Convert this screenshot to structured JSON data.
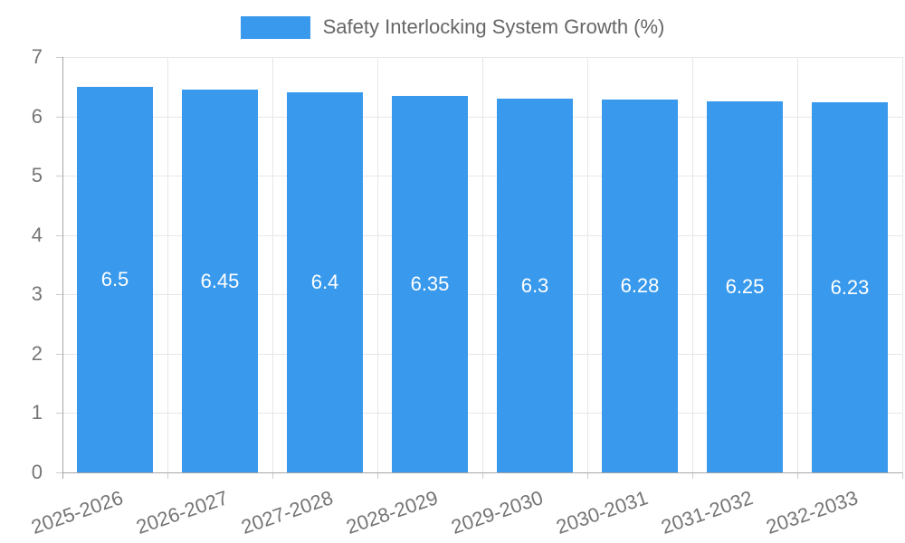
{
  "chart_data": {
    "type": "bar",
    "title": "Safety Interlocking System Growth (%)",
    "legend": {
      "position": "top",
      "label": "Safety Interlocking System Growth (%)"
    },
    "categories": [
      "2025-2026",
      "2026-2027",
      "2027-2028",
      "2028-2029",
      "2029-2030",
      "2030-2031",
      "2031-2032",
      "2032-2033"
    ],
    "values": [
      6.5,
      6.45,
      6.4,
      6.35,
      6.3,
      6.28,
      6.25,
      6.23
    ],
    "value_labels": [
      "6.5",
      "6.45",
      "6.4",
      "6.35",
      "6.3",
      "6.28",
      "6.25",
      "6.23"
    ],
    "xlabel": "",
    "ylabel": "",
    "ylim": [
      0,
      7
    ],
    "yticks": [
      0,
      1,
      2,
      3,
      4,
      5,
      6,
      7
    ],
    "grid": true,
    "colors": {
      "bar": "#3999EC",
      "value_label": "#FFFFFF",
      "axis_text": "#757575",
      "legend_text": "#666666",
      "grid_line": "#E7E7E7",
      "axis_line": "#A6A6A6",
      "tick_mark": "#CDCDCD",
      "background": "#FFFFFF"
    }
  }
}
